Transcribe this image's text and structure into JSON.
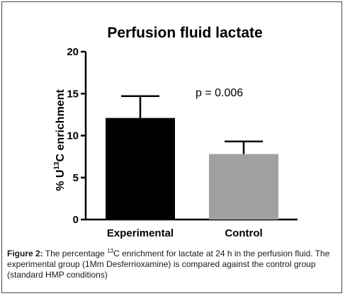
{
  "chart_data": {
    "type": "bar",
    "title": "Perfusion fluid lactate",
    "ylabel": {
      "prefix": "% U",
      "superscript": "13",
      "suffix": "C enrichment"
    },
    "xlabel": "",
    "categories": [
      "Experimental",
      "Control"
    ],
    "values": [
      12.1,
      7.8
    ],
    "errors": [
      2.6,
      1.5
    ],
    "bar_colors": [
      "#000000",
      "#a0a0a0"
    ],
    "ylim": [
      0,
      20
    ],
    "yticks": [
      0,
      5,
      10,
      15,
      20
    ],
    "grid": false,
    "annotation": "p = 0.006"
  },
  "caption": {
    "label": "Figure 2:",
    "text_before_sup": " The percentage ",
    "superscript": "13",
    "text_after_sup": "C enrichment for lactate at 24 h in the perfusion fluid. The experimental group (1Mm Desferrioxamine) is compared against the control group (standard HMP conditions)"
  }
}
